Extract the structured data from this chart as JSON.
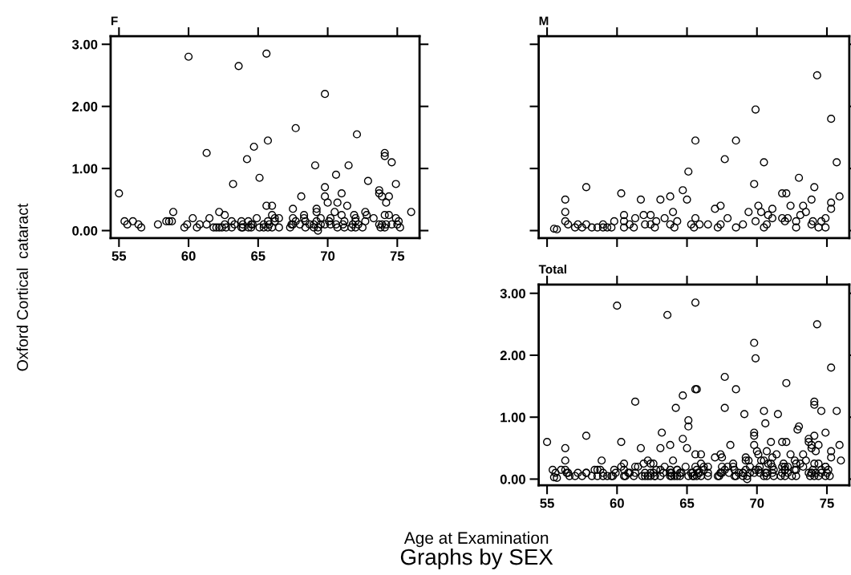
{
  "chart_data": [
    {
      "type": "scatter",
      "title": "F",
      "ylabel": "Oxford Cortical  cataract",
      "color": "#000000",
      "marker": "circle",
      "xlim": [
        54.4,
        76.6
      ],
      "ylim": [
        -0.12,
        3.13
      ],
      "xticks": [
        55,
        60,
        65,
        70,
        75
      ],
      "yticks": [
        {
          "value": 0,
          "label": "0.00"
        },
        {
          "value": 1,
          "label": "1.00"
        },
        {
          "value": 2,
          "label": "2.00"
        },
        {
          "value": 3,
          "label": "3.00"
        }
      ],
      "grid": false,
      "x": [
        55.0,
        60.0,
        63.6,
        61.3,
        64.2,
        64.7,
        63.2,
        58.9,
        62.2,
        62.6,
        61.5,
        60.3,
        55.4,
        55.6,
        56.0,
        56.4,
        56.6,
        57.8,
        58.4,
        58.6,
        58.8,
        59.7,
        59.9,
        60.6,
        60.8,
        61.3,
        61.8,
        62.0,
        62.2,
        62.4,
        62.6,
        62.7,
        63.1,
        63.1,
        63.3,
        63.8,
        63.8,
        64.3,
        64.3,
        64.6,
        64.9,
        65.6,
        69.8,
        67.7,
        72.1,
        65.7,
        74.1,
        74.1,
        74.6,
        69.1,
        71.5,
        65.1,
        70.6,
        74.9,
        72.9,
        69.8,
        73.7,
        73.7,
        71.0,
        73.9,
        74.4,
        68.1,
        69.8,
        70.0,
        74.2,
        70.7,
        65.6,
        66.0,
        71.4,
        67.5,
        69.2,
        69.2,
        76.0,
        72.7,
        70.5,
        66.0,
        68.3,
        71.0,
        71.9,
        72.8,
        74.1,
        74.4,
        66.2,
        66.5,
        67.5,
        68.3,
        69.5,
        70.2,
        72.0,
        73.3,
        74.9,
        65.7,
        66.2,
        67.7,
        68.4,
        69.2,
        70.1,
        71.2,
        72.0,
        72.7,
        75.1,
        63.9,
        64.5,
        65.4,
        65.8,
        67.4,
        67.5,
        68.0,
        68.7,
        69.0,
        69.5,
        69.8,
        70.2,
        70.6,
        71.1,
        71.8,
        72.2,
        73.7,
        73.9,
        74.2,
        74.6,
        75.0,
        63.9,
        64.5,
        65.1,
        65.4,
        65.7,
        66.0,
        66.5,
        67.3,
        68.4,
        69.0,
        69.3,
        70.7,
        71.2,
        71.7,
        72.0,
        72.5,
        73.8,
        74.1,
        75.2,
        69.3
      ],
      "values": [
        0.6,
        2.8,
        2.65,
        1.25,
        1.15,
        1.35,
        0.75,
        0.3,
        0.3,
        0.25,
        0.2,
        0.2,
        0.15,
        0.1,
        0.15,
        0.1,
        0.05,
        0.1,
        0.15,
        0.15,
        0.15,
        0.05,
        0.1,
        0.05,
        0.1,
        0.1,
        0.05,
        0.05,
        0.05,
        0.05,
        0.1,
        0.05,
        0.15,
        0.05,
        0.1,
        0.15,
        0.05,
        0.15,
        0.05,
        0.1,
        0.2,
        2.85,
        2.2,
        1.65,
        1.55,
        1.45,
        1.25,
        1.2,
        1.1,
        1.05,
        1.05,
        0.85,
        0.9,
        0.75,
        0.8,
        0.7,
        0.65,
        0.6,
        0.6,
        0.55,
        0.55,
        0.55,
        0.55,
        0.45,
        0.45,
        0.45,
        0.4,
        0.4,
        0.4,
        0.35,
        0.35,
        0.3,
        0.3,
        0.3,
        0.3,
        0.25,
        0.25,
        0.25,
        0.25,
        0.25,
        0.25,
        0.25,
        0.2,
        0.2,
        0.2,
        0.2,
        0.2,
        0.2,
        0.2,
        0.2,
        0.2,
        0.15,
        0.15,
        0.15,
        0.15,
        0.15,
        0.15,
        0.15,
        0.15,
        0.15,
        0.15,
        0.1,
        0.1,
        0.1,
        0.1,
        0.1,
        0.1,
        0.1,
        0.1,
        0.1,
        0.1,
        0.1,
        0.1,
        0.1,
        0.1,
        0.1,
        0.1,
        0.1,
        0.1,
        0.1,
        0.1,
        0.1,
        0.05,
        0.05,
        0.05,
        0.05,
        0.05,
        0.05,
        0.05,
        0.05,
        0.05,
        0.05,
        0.05,
        0.05,
        0.05,
        0.05,
        0.05,
        0.05,
        0.05,
        0.05,
        0.05,
        0.0
      ]
    },
    {
      "type": "scatter",
      "title": "M",
      "color": "#000000",
      "marker": "circle",
      "xlim": [
        54.4,
        76.6
      ],
      "ylim": [
        -0.12,
        3.13
      ],
      "xticks": [
        55,
        60,
        65,
        70,
        75
      ],
      "yticks": [
        {
          "value": 0,
          "label": null
        },
        {
          "value": 1,
          "label": null
        },
        {
          "value": 2,
          "label": null
        },
        {
          "value": 3,
          "label": null
        }
      ],
      "tick_labels": false,
      "grid": false,
      "x": [
        55.5,
        55.7,
        56.3,
        56.3,
        56.3,
        56.5,
        57.8,
        57.0,
        57.2,
        57.5,
        57.8,
        58.2,
        58.6,
        59.0,
        59.0,
        59.3,
        59.6,
        59.8,
        60.3,
        60.5,
        60.5,
        60.5,
        60.9,
        61.2,
        61.3,
        61.7,
        61.9,
        62.0,
        62.4,
        62.4,
        62.7,
        62.8,
        63.1,
        63.4,
        63.8,
        64.0,
        63.8,
        64.1,
        64.3,
        64.7,
        65.0,
        65.1,
        65.6,
        65.6,
        65.3,
        65.5,
        65.9,
        66.5,
        67.0,
        67.4,
        67.4,
        67.2,
        67.7,
        67.9,
        68.5,
        68.5,
        69.0,
        69.4,
        69.8,
        69.9,
        69.9,
        70.1,
        70.3,
        70.5,
        70.5,
        70.7,
        70.8,
        71.1,
        71.1,
        71.8,
        72.1,
        71.8,
        72.2,
        72.0,
        72.4,
        72.8,
        72.8,
        73.0,
        73.1,
        73.3,
        73.5,
        73.9,
        74.1,
        73.9,
        74.0,
        74.3,
        74.4,
        74.6,
        74.9,
        74.9,
        75.3,
        75.3,
        75.3,
        75.7,
        75.9
      ],
      "values": [
        0.03,
        0.02,
        0.5,
        0.3,
        0.15,
        0.1,
        0.7,
        0.05,
        0.1,
        0.05,
        0.1,
        0.05,
        0.05,
        0.1,
        0.05,
        0.05,
        0.05,
        0.15,
        0.6,
        0.25,
        0.15,
        0.05,
        0.1,
        0.05,
        0.2,
        0.5,
        0.25,
        0.1,
        0.25,
        0.1,
        0.05,
        0.15,
        0.5,
        0.2,
        0.55,
        0.3,
        0.1,
        0.05,
        0.15,
        0.65,
        0.5,
        0.95,
        1.45,
        0.2,
        0.1,
        0.05,
        0.1,
        0.1,
        0.35,
        0.4,
        0.1,
        0.05,
        1.15,
        0.2,
        1.45,
        0.05,
        0.1,
        0.3,
        0.75,
        1.95,
        0.15,
        0.4,
        0.3,
        1.1,
        0.05,
        0.1,
        0.25,
        0.35,
        0.2,
        0.6,
        0.6,
        0.2,
        0.2,
        0.15,
        0.4,
        0.15,
        0.05,
        0.85,
        0.25,
        0.4,
        0.3,
        0.5,
        0.7,
        0.1,
        0.15,
        2.5,
        0.05,
        0.15,
        0.2,
        0.05,
        1.8,
        0.45,
        0.35,
        1.1,
        0.55
      ]
    },
    {
      "type": "scatter",
      "title": "Total",
      "xlabel": "Age at Examination",
      "annotations": [
        "Graphs by SEX"
      ],
      "color": "#000000",
      "marker": "circle",
      "xlim": [
        54.4,
        76.6
      ],
      "ylim": [
        -0.1,
        3.14
      ],
      "xticks": [
        55,
        60,
        65,
        70,
        75
      ],
      "yticks": [
        {
          "value": 0,
          "label": "0.00"
        },
        {
          "value": 1,
          "label": "1.00"
        },
        {
          "value": 2,
          "label": "2.00"
        },
        {
          "value": 3,
          "label": "3.00"
        }
      ],
      "grid": false,
      "x": [
        55.0,
        60.0,
        63.6,
        61.3,
        64.2,
        64.7,
        63.2,
        58.9,
        62.2,
        62.6,
        61.5,
        60.3,
        55.4,
        55.6,
        56.0,
        56.4,
        56.6,
        57.8,
        58.4,
        58.6,
        58.8,
        59.7,
        59.9,
        60.6,
        60.8,
        61.3,
        61.8,
        62.0,
        62.2,
        62.4,
        62.6,
        62.7,
        63.1,
        63.1,
        63.3,
        63.8,
        63.8,
        64.3,
        64.3,
        64.6,
        64.9,
        65.6,
        69.8,
        67.7,
        72.1,
        65.7,
        74.1,
        74.1,
        74.6,
        69.1,
        71.5,
        65.1,
        70.6,
        74.9,
        72.9,
        69.8,
        73.7,
        73.7,
        71.0,
        73.9,
        74.4,
        68.1,
        69.8,
        70.0,
        74.2,
        70.7,
        65.6,
        66.0,
        71.4,
        67.5,
        69.2,
        69.2,
        76.0,
        72.7,
        70.5,
        66.0,
        68.3,
        71.0,
        71.9,
        72.8,
        74.1,
        74.4,
        66.2,
        66.5,
        67.5,
        68.3,
        69.5,
        70.2,
        72.0,
        73.3,
        74.9,
        65.7,
        66.2,
        67.7,
        68.4,
        69.2,
        70.1,
        71.2,
        72.0,
        72.7,
        75.1,
        63.9,
        64.5,
        65.4,
        65.8,
        67.4,
        67.5,
        68.0,
        68.7,
        69.0,
        69.5,
        69.8,
        70.2,
        70.6,
        71.1,
        71.8,
        72.2,
        73.7,
        73.9,
        74.2,
        74.6,
        75.0,
        63.9,
        64.5,
        65.1,
        65.4,
        65.7,
        66.0,
        66.5,
        67.3,
        68.4,
        69.0,
        69.3,
        70.7,
        71.2,
        71.7,
        72.0,
        72.5,
        73.8,
        74.1,
        75.2,
        69.3,
        55.5,
        55.7,
        56.3,
        56.3,
        56.3,
        56.5,
        57.8,
        57.0,
        57.2,
        57.5,
        57.8,
        58.2,
        58.6,
        59.0,
        59.0,
        59.3,
        59.6,
        59.8,
        60.3,
        60.5,
        60.5,
        60.5,
        60.9,
        61.2,
        61.3,
        61.7,
        61.9,
        62.0,
        62.4,
        62.4,
        62.7,
        62.8,
        63.1,
        63.4,
        63.8,
        64.0,
        63.8,
        64.1,
        64.3,
        64.7,
        65.0,
        65.1,
        65.6,
        65.6,
        65.3,
        65.5,
        65.9,
        66.5,
        67.0,
        67.4,
        67.4,
        67.2,
        67.7,
        67.9,
        68.5,
        68.5,
        69.0,
        69.4,
        69.8,
        69.9,
        69.9,
        70.1,
        70.3,
        70.5,
        70.5,
        70.7,
        70.8,
        71.1,
        71.1,
        71.8,
        72.1,
        71.8,
        72.2,
        72.0,
        72.4,
        72.8,
        72.8,
        73.0,
        73.1,
        73.3,
        73.5,
        73.9,
        74.1,
        73.9,
        74.0,
        74.3,
        74.4,
        74.6,
        74.9,
        74.9,
        75.3,
        75.3,
        75.3,
        75.7,
        75.9
      ],
      "values": [
        0.6,
        2.8,
        2.65,
        1.25,
        1.15,
        1.35,
        0.75,
        0.3,
        0.3,
        0.25,
        0.2,
        0.2,
        0.15,
        0.1,
        0.15,
        0.1,
        0.05,
        0.1,
        0.15,
        0.15,
        0.15,
        0.05,
        0.1,
        0.05,
        0.1,
        0.1,
        0.05,
        0.05,
        0.05,
        0.05,
        0.1,
        0.05,
        0.15,
        0.05,
        0.1,
        0.15,
        0.05,
        0.15,
        0.05,
        0.1,
        0.2,
        2.85,
        2.2,
        1.65,
        1.55,
        1.45,
        1.25,
        1.2,
        1.1,
        1.05,
        1.05,
        0.85,
        0.9,
        0.75,
        0.8,
        0.7,
        0.65,
        0.6,
        0.6,
        0.55,
        0.55,
        0.55,
        0.55,
        0.45,
        0.45,
        0.45,
        0.4,
        0.4,
        0.4,
        0.35,
        0.35,
        0.3,
        0.3,
        0.3,
        0.3,
        0.25,
        0.25,
        0.25,
        0.25,
        0.25,
        0.25,
        0.25,
        0.2,
        0.2,
        0.2,
        0.2,
        0.2,
        0.2,
        0.2,
        0.2,
        0.2,
        0.15,
        0.15,
        0.15,
        0.15,
        0.15,
        0.15,
        0.15,
        0.15,
        0.15,
        0.15,
        0.1,
        0.1,
        0.1,
        0.1,
        0.1,
        0.1,
        0.1,
        0.1,
        0.1,
        0.1,
        0.1,
        0.1,
        0.1,
        0.1,
        0.1,
        0.1,
        0.1,
        0.1,
        0.1,
        0.1,
        0.1,
        0.05,
        0.05,
        0.05,
        0.05,
        0.05,
        0.05,
        0.05,
        0.05,
        0.05,
        0.05,
        0.05,
        0.05,
        0.05,
        0.05,
        0.05,
        0.05,
        0.05,
        0.05,
        0.05,
        0.0,
        0.03,
        0.02,
        0.5,
        0.3,
        0.15,
        0.1,
        0.7,
        0.05,
        0.1,
        0.05,
        0.1,
        0.05,
        0.05,
        0.1,
        0.05,
        0.05,
        0.05,
        0.15,
        0.6,
        0.25,
        0.15,
        0.05,
        0.1,
        0.05,
        0.2,
        0.5,
        0.25,
        0.1,
        0.25,
        0.1,
        0.05,
        0.15,
        0.5,
        0.2,
        0.55,
        0.3,
        0.1,
        0.05,
        0.15,
        0.65,
        0.5,
        0.95,
        1.45,
        0.2,
        0.1,
        0.05,
        0.1,
        0.1,
        0.35,
        0.4,
        0.1,
        0.05,
        1.15,
        0.2,
        1.45,
        0.05,
        0.1,
        0.3,
        0.75,
        1.95,
        0.15,
        0.4,
        0.3,
        1.1,
        0.05,
        0.1,
        0.25,
        0.35,
        0.2,
        0.6,
        0.6,
        0.2,
        0.2,
        0.15,
        0.4,
        0.15,
        0.05,
        0.85,
        0.25,
        0.4,
        0.3,
        0.5,
        0.7,
        0.1,
        0.15,
        2.5,
        0.05,
        0.15,
        0.2,
        0.05,
        1.8,
        0.45,
        0.35,
        1.1,
        0.55
      ]
    }
  ]
}
